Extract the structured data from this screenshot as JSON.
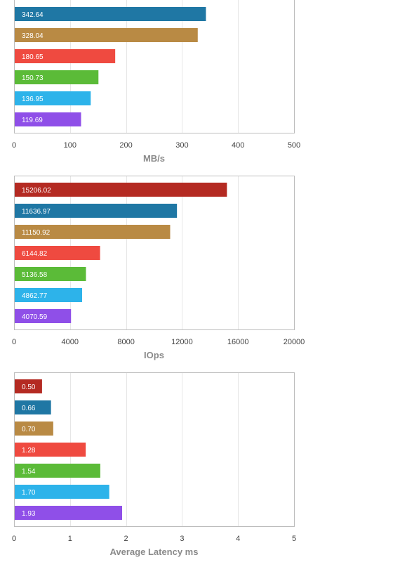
{
  "chart_data": [
    {
      "type": "bar",
      "orientation": "horizontal",
      "xlabel": "MB/s",
      "xlim": [
        0,
        500
      ],
      "xticks": [
        0,
        100,
        200,
        300,
        400,
        500
      ],
      "grid": true,
      "bars": [
        {
          "value": 342.64,
          "label": "342.64",
          "color": "#1f77a4"
        },
        {
          "value": 328.04,
          "label": "328.04",
          "color": "#b98a44"
        },
        {
          "value": 180.65,
          "label": "180.65",
          "color": "#ef4a40"
        },
        {
          "value": 150.73,
          "label": "150.73",
          "color": "#5bbb38"
        },
        {
          "value": 136.95,
          "label": "136.95",
          "color": "#2db3ea"
        },
        {
          "value": 119.69,
          "label": "119.69",
          "color": "#8f4fe8"
        }
      ]
    },
    {
      "type": "bar",
      "orientation": "horizontal",
      "xlabel": "IOps",
      "xlim": [
        0,
        20000
      ],
      "xticks": [
        0,
        4000,
        8000,
        12000,
        16000,
        20000
      ],
      "grid": true,
      "bars": [
        {
          "value": 15206.02,
          "label": "15206.02",
          "color": "#b42a22"
        },
        {
          "value": 11636.97,
          "label": "11636.97",
          "color": "#1f77a4"
        },
        {
          "value": 11150.92,
          "label": "11150.92",
          "color": "#b98a44"
        },
        {
          "value": 6144.82,
          "label": "6144.82",
          "color": "#ef4a40"
        },
        {
          "value": 5136.58,
          "label": "5136.58",
          "color": "#5bbb38"
        },
        {
          "value": 4862.77,
          "label": "4862.77",
          "color": "#2db3ea"
        },
        {
          "value": 4070.59,
          "label": "4070.59",
          "color": "#8f4fe8"
        }
      ]
    },
    {
      "type": "bar",
      "orientation": "horizontal",
      "xlabel": "Average Latency ms",
      "xlim": [
        0,
        5
      ],
      "xticks": [
        0,
        1,
        2,
        3,
        4,
        5
      ],
      "grid": true,
      "bars": [
        {
          "value": 0.5,
          "label": "0.50",
          "color": "#b42a22"
        },
        {
          "value": 0.66,
          "label": "0.66",
          "color": "#1f77a4"
        },
        {
          "value": 0.7,
          "label": "0.70",
          "color": "#b98a44"
        },
        {
          "value": 1.28,
          "label": "1.28",
          "color": "#ef4a40"
        },
        {
          "value": 1.54,
          "label": "1.54",
          "color": "#5bbb38"
        },
        {
          "value": 1.7,
          "label": "1.70",
          "color": "#2db3ea"
        },
        {
          "value": 1.93,
          "label": "1.93",
          "color": "#8f4fe8"
        }
      ]
    }
  ]
}
